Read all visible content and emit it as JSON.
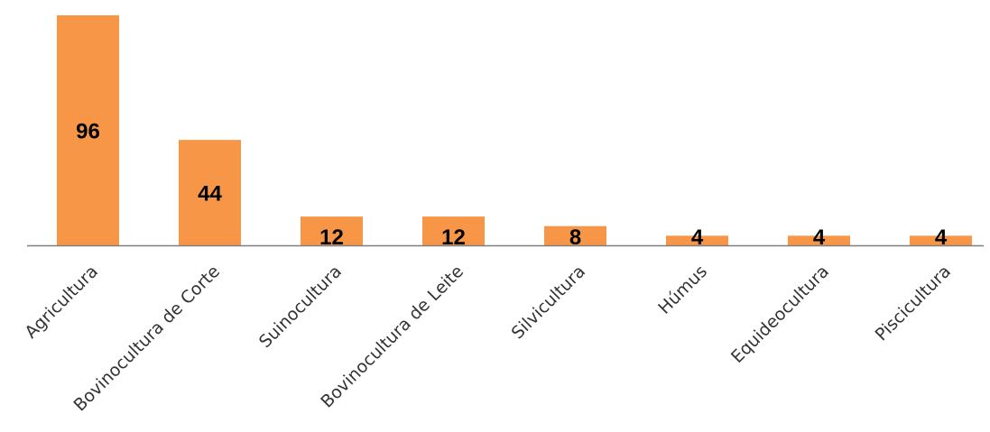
{
  "chart_data": {
    "type": "bar",
    "categories": [
      "Agricultura",
      "Bovinocultura de Corte",
      "Suinocultura",
      "Bovinocultura de Leite",
      "Silvicultura",
      "Húmus",
      "Equideocultura",
      "Piscicultura"
    ],
    "values": [
      96,
      44,
      12,
      12,
      8,
      4,
      4,
      4
    ],
    "data_labels": [
      "96",
      "44",
      "12",
      "12",
      "8",
      "4",
      "4",
      "4"
    ],
    "ylim": [
      0,
      96
    ],
    "grid": false,
    "legend": "none",
    "title": "",
    "xlabel": "",
    "ylabel": "",
    "colors": {
      "bar": "#F79646",
      "axis": "#7F7F7F",
      "label": "#333333",
      "value_label": "#000000"
    }
  }
}
